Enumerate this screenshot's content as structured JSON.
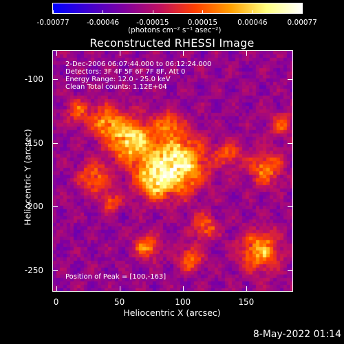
{
  "colorbar": {
    "ticks": [
      "-0.00077",
      "-0.00046",
      "-0.00015",
      "0.00015",
      "0.00046",
      "0.00077"
    ],
    "units_label": "(photons cm⁻² s⁻¹ asec⁻²)",
    "colors": [
      "#0000ff",
      "#4000d0",
      "#8000a0",
      "#c01060",
      "#ff4000",
      "#ffa000",
      "#ffff80",
      "#ffffff"
    ]
  },
  "title": "Reconstructed RHESSI Image",
  "annotations": {
    "time_range": "2-Dec-2006 06:07:44.000 to 06:12:24.000",
    "detectors": "Detectors: 3F 4F 5F 6F 7F 8F, Att 0",
    "energy": "Energy Range: 12.0 - 25.0 keV",
    "clean": "Clean     Total counts: 1.12E+04",
    "peak": "Position of Peak = [100,-163]"
  },
  "axes": {
    "xlabel": "Heliocentric X (arcsec)",
    "ylabel": "Heliocentric Y (arcsec)",
    "xticks": [
      "0",
      "50",
      "100",
      "150"
    ],
    "yticks": [
      "-100",
      "-150",
      "-200",
      "-250"
    ],
    "xrange": [
      -3,
      187
    ],
    "yrange": [
      -267,
      -77
    ]
  },
  "footer_timestamp": "8-May-2022 01:14"
}
